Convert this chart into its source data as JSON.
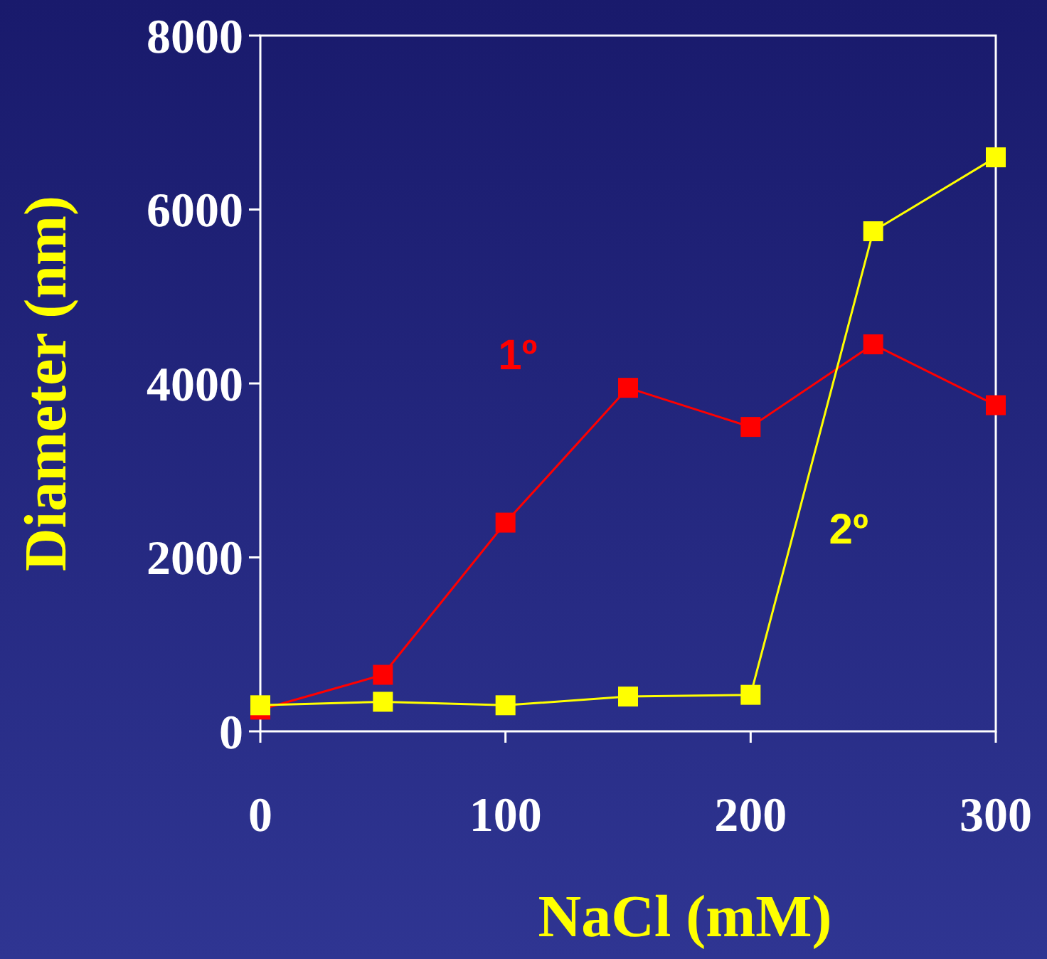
{
  "chart_data": {
    "type": "line",
    "xlabel": "NaCl (mM)",
    "ylabel": "Diameter (nm)",
    "x": [
      0,
      50,
      100,
      150,
      200,
      250,
      300
    ],
    "series": [
      {
        "name": "1º",
        "color": "#ff0000",
        "values": [
          250,
          650,
          2400,
          3950,
          3500,
          4450,
          3750
        ]
      },
      {
        "name": "2º",
        "color": "#ffff00",
        "values": [
          300,
          340,
          300,
          400,
          420,
          5750,
          6600
        ]
      }
    ],
    "xlim": [
      0,
      300
    ],
    "xticks": [
      0,
      100,
      200,
      300
    ],
    "ylim": [
      0,
      8000
    ],
    "yticks": [
      0,
      2000,
      4000,
      6000,
      8000
    ],
    "grid": false,
    "marker": "square",
    "line_style": "solid"
  }
}
